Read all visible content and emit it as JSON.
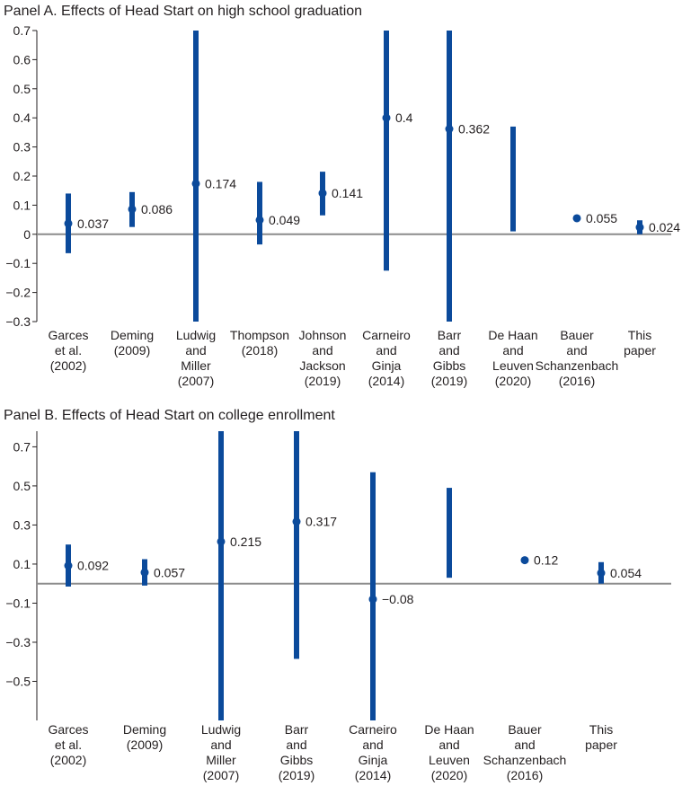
{
  "colors": {
    "series": "#0b4a9b",
    "axis": "#231f20",
    "zero": "#8c8c8c"
  },
  "chart_data": [
    {
      "type": "errorbar",
      "title": "Panel A. Effects of Head Start on high school graduation",
      "ylim": [
        -0.3,
        0.7
      ],
      "yticks": [
        {
          "value": 0.7,
          "label": "0.7"
        },
        {
          "value": 0.6,
          "label": "0.6"
        },
        {
          "value": 0.5,
          "label": "0.5"
        },
        {
          "value": 0.4,
          "label": "0.4"
        },
        {
          "value": 0.3,
          "label": "0.3"
        },
        {
          "value": 0.2,
          "label": "0.2"
        },
        {
          "value": 0.1,
          "label": "0.1"
        },
        {
          "value": 0,
          "label": "0"
        },
        {
          "value": -0.1,
          "label": "−0.1"
        },
        {
          "value": -0.2,
          "label": "−0.2"
        },
        {
          "value": -0.3,
          "label": "−0.3"
        }
      ],
      "points": [
        {
          "lines": [
            "Garces",
            "et al.",
            "(2002)"
          ],
          "value": 0.037,
          "label": "0.037",
          "lo": -0.065,
          "hi": 0.14
        },
        {
          "lines": [
            "Deming",
            "(2009)"
          ],
          "value": 0.086,
          "label": "0.086",
          "lo": 0.025,
          "hi": 0.145
        },
        {
          "lines": [
            "Ludwig",
            "and",
            "Miller",
            "(2007)"
          ],
          "value": 0.174,
          "label": "0.174",
          "lo": -0.3,
          "hi": 0.7
        },
        {
          "lines": [
            "Thompson",
            "(2018)"
          ],
          "value": 0.049,
          "label": "0.049",
          "lo": -0.035,
          "hi": 0.18
        },
        {
          "lines": [
            "Johnson",
            "and",
            "Jackson",
            "(2019)"
          ],
          "value": 0.141,
          "label": "0.141",
          "lo": 0.065,
          "hi": 0.215
        },
        {
          "lines": [
            "Carneiro",
            "and",
            "Ginja",
            "(2014)"
          ],
          "value": 0.4,
          "label": "0.4",
          "lo": -0.125,
          "hi": 0.7
        },
        {
          "lines": [
            "Barr",
            "and",
            "Gibbs",
            "(2019)"
          ],
          "value": 0.362,
          "label": "0.362",
          "lo": -0.3,
          "hi": 0.7
        },
        {
          "lines": [
            "De Haan",
            "and",
            "Leuven",
            "(2020)"
          ],
          "value": null,
          "label": "",
          "lo": 0.01,
          "hi": 0.37
        },
        {
          "lines": [
            "Bauer",
            "and",
            "Schanzenbach",
            "(2016)"
          ],
          "value": 0.055,
          "label": "0.055",
          "lo": 0.048,
          "hi": 0.062
        },
        {
          "lines": [
            "This",
            "paper"
          ],
          "value": 0.024,
          "label": "0.024",
          "lo": 0.0,
          "hi": 0.048
        }
      ]
    },
    {
      "type": "errorbar",
      "title": "Panel B. Effects of Head Start on college enrollment",
      "ylim": [
        -0.7,
        0.78
      ],
      "yticks": [
        {
          "value": 0.7,
          "label": "0.7"
        },
        {
          "value": 0.5,
          "label": "0.5"
        },
        {
          "value": 0.3,
          "label": "0.3"
        },
        {
          "value": 0.1,
          "label": "0.1"
        },
        {
          "value": -0.1,
          "label": "−0.1"
        },
        {
          "value": -0.3,
          "label": "−0.3"
        },
        {
          "value": -0.5,
          "label": "−0.5"
        }
      ],
      "points": [
        {
          "lines": [
            "Garces",
            "et al.",
            "(2002)"
          ],
          "value": 0.092,
          "label": "0.092",
          "lo": -0.015,
          "hi": 0.2
        },
        {
          "lines": [
            "Deming",
            "(2009)"
          ],
          "value": 0.057,
          "label": "0.057",
          "lo": -0.01,
          "hi": 0.125
        },
        {
          "lines": [
            "Ludwig",
            "and",
            "Miller",
            "(2007)"
          ],
          "value": 0.215,
          "label": "0.215",
          "lo": -0.7,
          "hi": 0.78
        },
        {
          "lines": [
            "Barr",
            "and",
            "Gibbs",
            "(2019)"
          ],
          "value": 0.317,
          "label": "0.317",
          "lo": -0.385,
          "hi": 0.78
        },
        {
          "lines": [
            "Carneiro",
            "and",
            "Ginja",
            "(2014)"
          ],
          "value": -0.08,
          "label": "−0.08",
          "lo": -0.7,
          "hi": 0.57
        },
        {
          "lines": [
            "De Haan",
            "and",
            "Leuven",
            "(2020)"
          ],
          "value": null,
          "label": "",
          "lo": 0.03,
          "hi": 0.49
        },
        {
          "lines": [
            "Bauer",
            "and",
            "Schanzenbach",
            "(2016)"
          ],
          "value": 0.12,
          "label": "0.12",
          "lo": 0.11,
          "hi": 0.13
        },
        {
          "lines": [
            "This",
            "paper"
          ],
          "value": 0.054,
          "label": "0.054",
          "lo": 0.0,
          "hi": 0.11
        }
      ]
    }
  ]
}
